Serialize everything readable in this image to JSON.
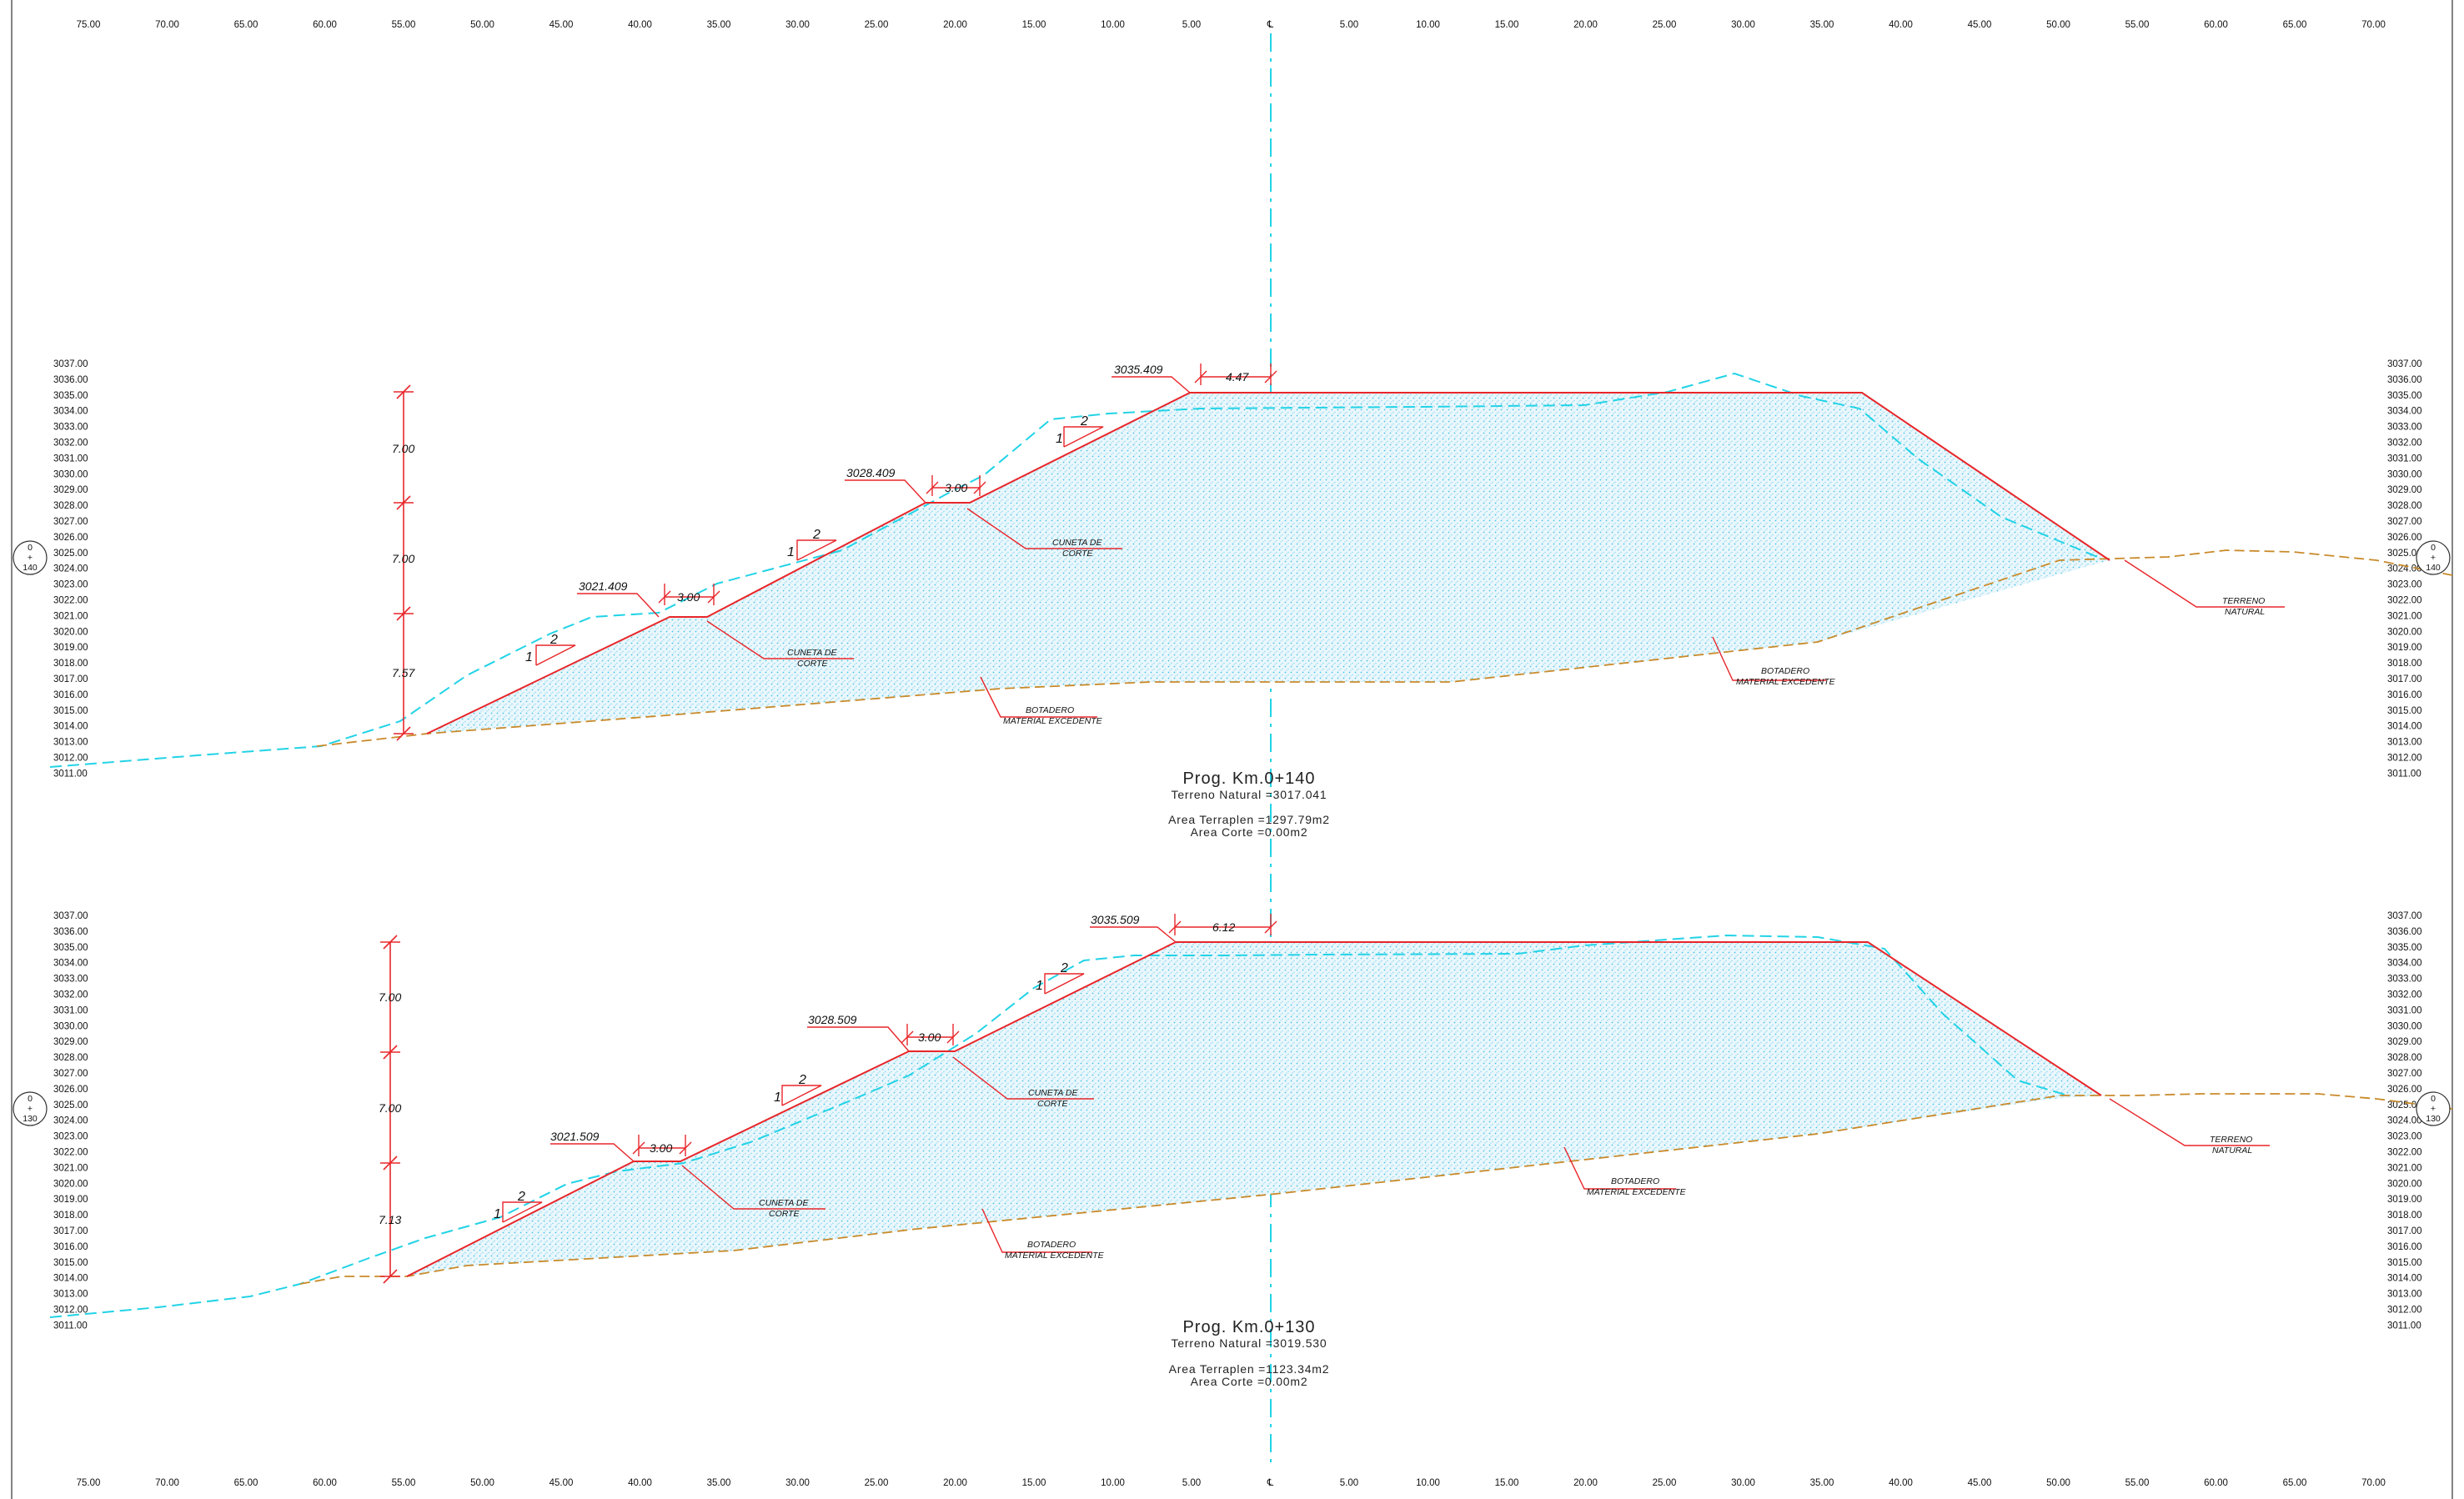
{
  "colors": {
    "design": "#e8262a",
    "terrain": "#22d3e6",
    "botadero": "#c98a2a",
    "fill": "#18b8e0",
    "centerline": "#22d3e6",
    "text": "#111111"
  },
  "offset_axis": {
    "labels": [
      "75.00",
      "70.00",
      "65.00",
      "60.00",
      "55.00",
      "50.00",
      "45.00",
      "40.00",
      "35.00",
      "30.00",
      "25.00",
      "20.00",
      "15.00",
      "10.00",
      "5.00",
      "℄",
      "5.00",
      "10.00",
      "15.00",
      "20.00",
      "25.00",
      "30.00",
      "35.00",
      "40.00",
      "45.00",
      "50.00",
      "55.00",
      "60.00",
      "65.00",
      "70.00"
    ]
  },
  "sections": [
    {
      "station_tag": [
        "0",
        "+",
        "140"
      ],
      "elevation_labels": [
        "3037.00",
        "3036.00",
        "3035.00",
        "3034.00",
        "3033.00",
        "3032.00",
        "3031.00",
        "3030.00",
        "3029.00",
        "3028.00",
        "3027.00",
        "3026.00",
        "3025.00",
        "3024.00",
        "3023.00",
        "3022.00",
        "3021.00",
        "3020.00",
        "3019.00",
        "3018.00",
        "3017.00",
        "3016.00",
        "3015.00",
        "3014.00",
        "3013.00",
        "3012.00",
        "3011.00"
      ],
      "title": "Prog. Km.0+140",
      "terreno": "Terreno Natural =3017.041",
      "area_terraplen": "Area Terraplen =1297.79m2",
      "area_corte": "Area Corte =0.00m2",
      "bench_elevations": [
        "3035.409",
        "3028.409",
        "3021.409"
      ],
      "crown_width": "4.47",
      "bench_width_upper": "3.00",
      "bench_width_lower": "3.00",
      "vertical_dims": [
        "7.00",
        "7.00",
        "7.57"
      ],
      "slope_ratio": [
        "1",
        "2"
      ],
      "note_cuneta": [
        "CUNETA DE",
        "CORTE"
      ],
      "note_botadero": [
        "BOTADERO",
        "MATERIAL EXCEDENTE"
      ],
      "note_terreno": [
        "TERRENO",
        "NATURAL"
      ]
    },
    {
      "station_tag": [
        "0",
        "+",
        "130"
      ],
      "elevation_labels": [
        "3037.00",
        "3036.00",
        "3035.00",
        "3034.00",
        "3033.00",
        "3032.00",
        "3031.00",
        "3030.00",
        "3029.00",
        "3028.00",
        "3027.00",
        "3026.00",
        "3025.00",
        "3024.00",
        "3023.00",
        "3022.00",
        "3021.00",
        "3020.00",
        "3019.00",
        "3018.00",
        "3017.00",
        "3016.00",
        "3015.00",
        "3014.00",
        "3013.00",
        "3012.00",
        "3011.00"
      ],
      "title": "Prog. Km.0+130",
      "terreno": "Terreno Natural =3019.530",
      "area_terraplen": "Area Terraplen =1123.34m2",
      "area_corte": "Area Corte =0.00m2",
      "bench_elevations": [
        "3035.509",
        "3028.509",
        "3021.509"
      ],
      "crown_width": "6.12",
      "bench_width_upper": "3.00",
      "bench_width_lower": "3.00",
      "vertical_dims": [
        "7.00",
        "7.00",
        "7.13"
      ],
      "slope_ratio": [
        "1",
        "2"
      ],
      "note_cuneta": [
        "CUNETA DE",
        "CORTE"
      ],
      "note_botadero": [
        "BOTADERO",
        "MATERIAL EXCEDENTE"
      ],
      "note_terreno": [
        "TERRENO",
        "NATURAL"
      ]
    }
  ]
}
